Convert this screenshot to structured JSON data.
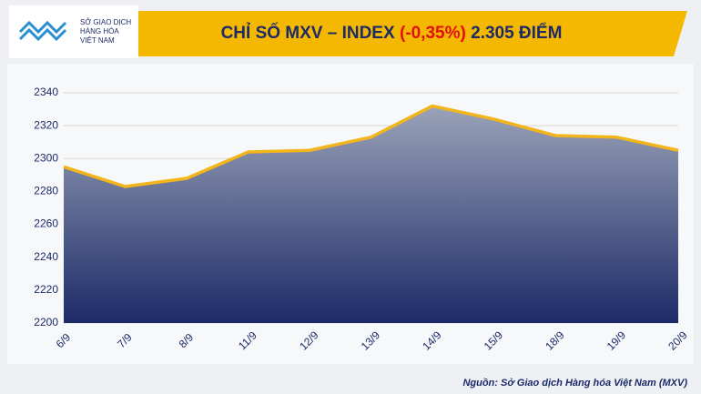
{
  "logo": {
    "lines": [
      "SỞ GIAO DỊCH",
      "HÀNG HÓA",
      "VIỆT NAM"
    ]
  },
  "chart_data": {
    "type": "area",
    "title": "CHỈ SỐ MXV – INDEX",
    "title_change": "(-0,35%)",
    "title_value": "2.305 ĐIỂM",
    "categories": [
      "6/9",
      "7/9",
      "8/9",
      "11/9",
      "12/9",
      "13/9",
      "14/9",
      "15/9",
      "18/9",
      "19/9",
      "20/9"
    ],
    "values": [
      2295,
      2283,
      2288,
      2304,
      2305,
      2313,
      2332,
      2324,
      2314,
      2313,
      2305
    ],
    "color": "#f2b51c",
    "area_color": "#1c2a68",
    "ylim": [
      2200,
      2340
    ],
    "yticks": [
      2200,
      2220,
      2240,
      2260,
      2280,
      2300,
      2320,
      2340
    ],
    "grid": true
  },
  "source": "Nguồn: Sở Giao dịch Hàng hóa Việt Nam (MXV)"
}
